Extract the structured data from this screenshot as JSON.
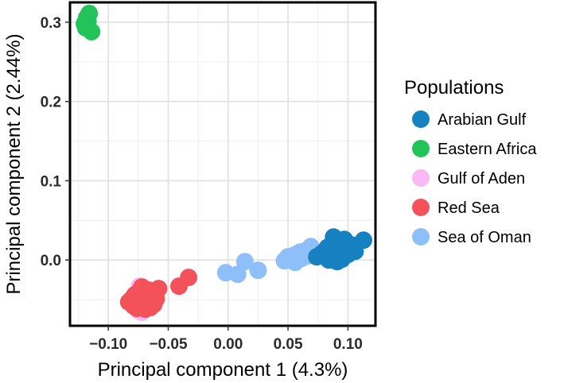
{
  "chart_data": {
    "type": "scatter",
    "title": "",
    "xlabel": "Principal component 1 (4.3%)",
    "ylabel": "Principal component 2 (2.44%)",
    "xlim": [
      -0.132,
      0.123
    ],
    "ylim": [
      -0.083,
      0.325
    ],
    "x_ticks": [
      -0.1,
      -0.05,
      0.0,
      0.05,
      0.1
    ],
    "x_tick_labels": [
      "−0.10",
      "−0.05",
      "0.00",
      "0.05",
      "0.10"
    ],
    "y_ticks": [
      0.0,
      0.1,
      0.2,
      0.3
    ],
    "y_tick_labels": [
      "0.0",
      "0.1",
      "0.2",
      "0.3"
    ],
    "grid": true,
    "legend": {
      "title": "Populations",
      "position": "right"
    },
    "series": [
      {
        "name": "Gulf of Aden",
        "color": "#f7b8f5",
        "x": [
          -0.074,
          -0.078,
          -0.072,
          -0.069,
          -0.077,
          -0.071,
          -0.075
        ],
        "y": [
          -0.033,
          -0.047,
          -0.066,
          -0.061,
          -0.056,
          -0.038,
          -0.064
        ]
      },
      {
        "name": "Red Sea",
        "color": "#f4525a",
        "x": [
          -0.083,
          -0.079,
          -0.076,
          -0.073,
          -0.07,
          -0.067,
          -0.064,
          -0.061,
          -0.058,
          -0.074,
          -0.071,
          -0.068,
          -0.077,
          -0.081,
          -0.069,
          -0.065,
          -0.072,
          -0.06,
          -0.066,
          -0.075,
          -0.07,
          -0.063,
          -0.078,
          -0.062,
          -0.067,
          -0.073,
          -0.068,
          -0.041,
          -0.033
        ],
        "y": [
          -0.053,
          -0.058,
          -0.061,
          -0.054,
          -0.05,
          -0.056,
          -0.047,
          -0.043,
          -0.036,
          -0.039,
          -0.044,
          -0.041,
          -0.049,
          -0.05,
          -0.062,
          -0.06,
          -0.034,
          -0.049,
          -0.038,
          -0.058,
          -0.055,
          -0.052,
          -0.044,
          -0.056,
          -0.045,
          -0.048,
          -0.052,
          -0.033,
          -0.022
        ]
      },
      {
        "name": "Sea of Oman",
        "color": "#8fbff8",
        "x": [
          -0.002,
          0.008,
          0.014,
          0.025,
          0.047,
          0.052,
          0.055,
          0.058,
          0.061,
          0.064,
          0.066,
          0.069,
          0.071,
          0.056,
          0.06,
          0.05
        ],
        "y": [
          -0.016,
          -0.018,
          -0.002,
          -0.013,
          -0.001,
          0.003,
          0.006,
          0.008,
          0.002,
          0.011,
          0.005,
          0.017,
          0.009,
          -0.003,
          0.01,
          0.004
        ]
      },
      {
        "name": "Arabian Gulf",
        "color": "#1581c0",
        "x": [
          0.074,
          0.078,
          0.081,
          0.084,
          0.086,
          0.088,
          0.09,
          0.092,
          0.094,
          0.096,
          0.098,
          0.1,
          0.103,
          0.106,
          0.113,
          0.088,
          0.093,
          0.097,
          0.083,
          0.091,
          0.099,
          0.086,
          0.095
        ],
        "y": [
          0.004,
          0.008,
          0.012,
          0.0,
          0.019,
          0.029,
          0.008,
          0.024,
          0.003,
          0.014,
          0.021,
          0.007,
          0.019,
          0.011,
          0.025,
          0.005,
          0.017,
          0.026,
          0.016,
          -0.002,
          0.013,
          0.01,
          0.001
        ]
      },
      {
        "name": "Eastern Africa",
        "color": "#22c45a",
        "x": [
          -0.12,
          -0.118,
          -0.116,
          -0.114,
          -0.119,
          -0.117
        ],
        "y": [
          0.298,
          0.306,
          0.311,
          0.288,
          0.293,
          0.301
        ]
      }
    ],
    "legend_order": [
      "Arabian Gulf",
      "Eastern Africa",
      "Gulf of Aden",
      "Red Sea",
      "Sea of Oman"
    ]
  }
}
